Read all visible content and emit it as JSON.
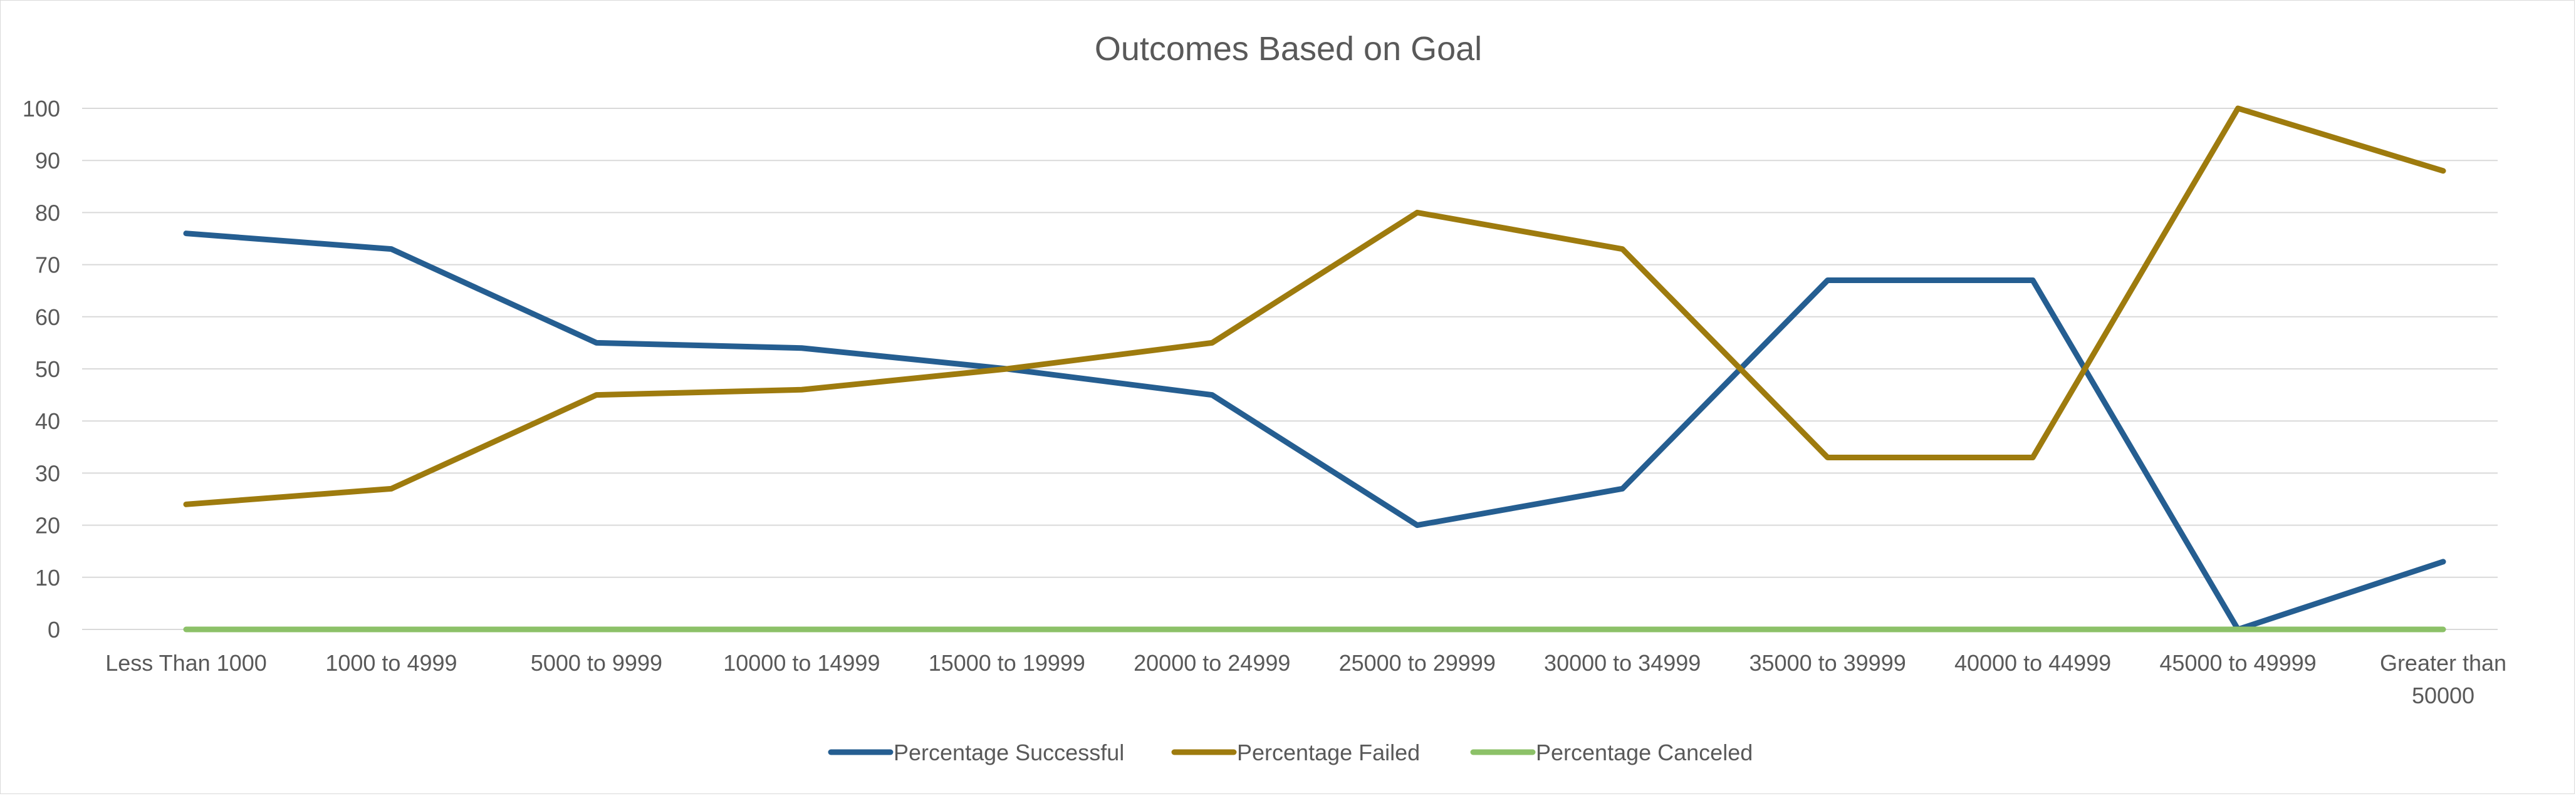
{
  "chart_data": {
    "type": "line",
    "title": "Outcomes Based on Goal",
    "xlabel": "",
    "ylabel": "",
    "ylim": [
      0,
      100
    ],
    "yticks": [
      0,
      10,
      20,
      30,
      40,
      50,
      60,
      70,
      80,
      90,
      100
    ],
    "grid": true,
    "legend_position": "bottom",
    "categories": [
      "Less Than 1000",
      "1000 to 4999",
      "5000 to 9999",
      "10000 to 14999",
      "15000 to 19999",
      "20000 to 24999",
      "25000 to 29999",
      "30000 to 34999",
      "35000 to 39999",
      "40000 to 44999",
      "45000 to 49999",
      "Greater than 50000"
    ],
    "series": [
      {
        "name": "Percentage Successful",
        "color": "#255e91",
        "values": [
          76,
          73,
          55,
          54,
          50,
          45,
          20,
          27,
          67,
          67,
          0,
          13
        ]
      },
      {
        "name": "Percentage Failed",
        "color": "#9e7b0e",
        "values": [
          24,
          27,
          45,
          46,
          50,
          55,
          80,
          73,
          33,
          33,
          100,
          88
        ]
      },
      {
        "name": "Percentage Canceled",
        "color": "#8cc168",
        "values": [
          0,
          0,
          0,
          0,
          0,
          0,
          0,
          0,
          0,
          0,
          0,
          0
        ]
      }
    ]
  }
}
